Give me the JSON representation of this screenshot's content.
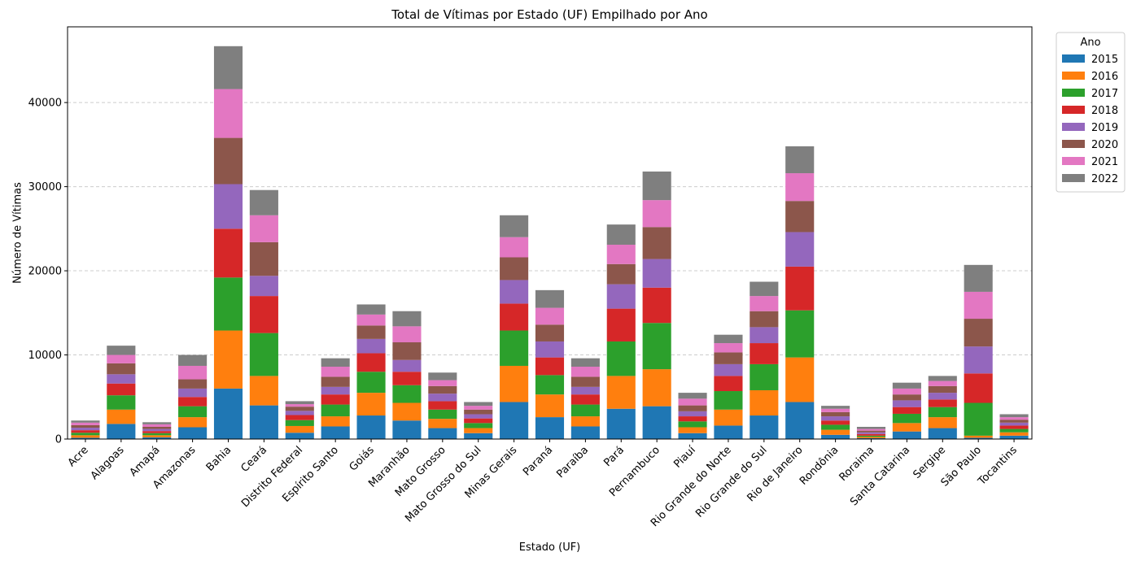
{
  "chart_data": {
    "type": "bar",
    "stacked": true,
    "title": "Total de Vítimas por Estado (UF) Empilhado por Ano",
    "xlabel": "Estado (UF)",
    "ylabel": "Número de Vítimas",
    "ylim": [
      0,
      49000
    ],
    "yticks": [
      0,
      10000,
      20000,
      30000,
      40000
    ],
    "grid": "horizontal-dashed",
    "legend": {
      "title": "Ano",
      "placement": "outside-top-right"
    },
    "categories": [
      "Acre",
      "Alagoas",
      "Amapá",
      "Amazonas",
      "Bahia",
      "Ceará",
      "Distrito Federal",
      "Espírito Santo",
      "Goiás",
      "Maranhão",
      "Mato Grosso",
      "Mato Grosso do Sul",
      "Minas Gerais",
      "Paraná",
      "Paraíba",
      "Pará",
      "Pernambuco",
      "Piauí",
      "Rio Grande do Norte",
      "Rio Grande do Sul",
      "Rio de Janeiro",
      "Rondônia",
      "Roraima",
      "Santa Catarina",
      "Sergipe",
      "São Paulo",
      "Tocantins"
    ],
    "series": [
      {
        "name": "2015",
        "color": "#1f77b4",
        "values": [
          150,
          1800,
          200,
          1400,
          6000,
          4000,
          750,
          1500,
          2800,
          2200,
          1300,
          700,
          4400,
          2600,
          1500,
          3600,
          3900,
          700,
          1600,
          2800,
          4400,
          500,
          100,
          900,
          1300,
          150,
          400
        ]
      },
      {
        "name": "2016",
        "color": "#ff7f0e",
        "values": [
          300,
          1700,
          250,
          1200,
          6900,
          3500,
          800,
          1200,
          2700,
          2100,
          1100,
          600,
          4300,
          2700,
          1200,
          3900,
          4400,
          700,
          1900,
          3000,
          5300,
          600,
          150,
          1000,
          1300,
          250,
          400
        ]
      },
      {
        "name": "2017",
        "color": "#2ca02c",
        "values": [
          300,
          1700,
          250,
          1300,
          6300,
          5100,
          700,
          1400,
          2500,
          2100,
          1100,
          600,
          4200,
          2300,
          1400,
          4100,
          5500,
          700,
          2200,
          3100,
          5600,
          600,
          150,
          1100,
          1200,
          3900,
          400
        ]
      },
      {
        "name": "2018",
        "color": "#d62728",
        "values": [
          300,
          1400,
          250,
          1100,
          5800,
          4400,
          600,
          1200,
          2200,
          1600,
          1000,
          550,
          3200,
          2100,
          1200,
          3900,
          4200,
          600,
          1800,
          2500,
          5200,
          500,
          200,
          800,
          900,
          3500,
          400
        ]
      },
      {
        "name": "2019",
        "color": "#9467bd",
        "values": [
          300,
          1100,
          250,
          1000,
          5300,
          2400,
          500,
          900,
          1700,
          1400,
          900,
          500,
          2800,
          1900,
          900,
          2900,
          3400,
          600,
          1400,
          1900,
          4100,
          500,
          200,
          800,
          800,
          3200,
          350
        ]
      },
      {
        "name": "2020",
        "color": "#8c564b",
        "values": [
          300,
          1300,
          250,
          1100,
          5500,
          4000,
          500,
          1200,
          1600,
          2100,
          900,
          550,
          2700,
          2000,
          1200,
          2400,
          3800,
          700,
          1400,
          1900,
          3700,
          500,
          200,
          700,
          800,
          3300,
          350
        ]
      },
      {
        "name": "2021",
        "color": "#e377c2",
        "values": [
          300,
          1000,
          300,
          1600,
          5800,
          3200,
          300,
          1200,
          1300,
          1900,
          700,
          450,
          2400,
          2000,
          1200,
          2300,
          3200,
          800,
          1100,
          1800,
          3300,
          400,
          200,
          700,
          600,
          3200,
          300
        ]
      },
      {
        "name": "2022",
        "color": "#7f7f7f",
        "values": [
          250,
          1100,
          250,
          1300,
          5100,
          3000,
          350,
          1000,
          1200,
          1800,
          900,
          450,
          2600,
          2100,
          1000,
          2400,
          3400,
          700,
          1000,
          1700,
          3200,
          350,
          250,
          700,
          600,
          3200,
          350
        ]
      }
    ]
  }
}
